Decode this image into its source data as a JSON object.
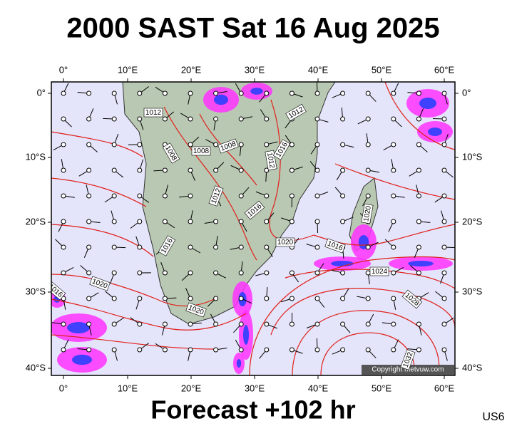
{
  "title": "2000 SAST Sat 16 Aug 2025",
  "footer": "Forecast +102 hr",
  "code": "US6",
  "copyright": "Copyright metvuw.com",
  "lon_labels": [
    "0°",
    "10°E",
    "20°E",
    "30°E",
    "40°E",
    "50°E",
    "60°E"
  ],
  "lat_labels": [
    "0°",
    "10°S",
    "20°S",
    "30°S",
    "40°S"
  ],
  "isobar_labels": [
    "1012",
    "1008",
    "1008",
    "1008",
    "1012",
    "1016",
    "1012",
    "1012",
    "1016",
    "1020",
    "1016",
    "1020",
    "1024",
    "1020",
    "1016",
    "1020",
    "1016",
    "1028",
    "1032"
  ]
}
